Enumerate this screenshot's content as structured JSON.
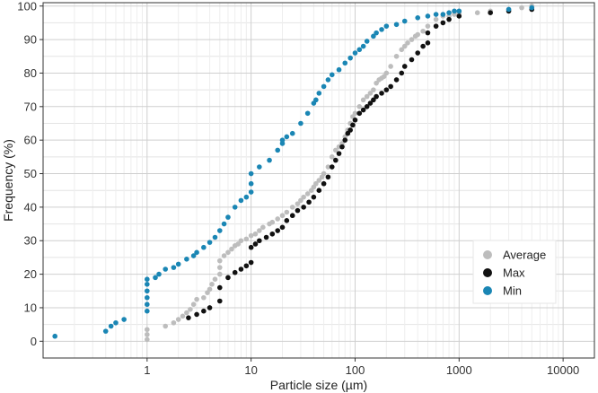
{
  "chart_data": {
    "type": "scatter",
    "title": "",
    "xlabel": "Particle size (µm)",
    "ylabel": "Frequency (%)",
    "x_scale": "log",
    "xlim": [
      0.1,
      20000
    ],
    "ylim": [
      -5,
      101
    ],
    "x_ticks": [
      1,
      10,
      100,
      1000,
      10000
    ],
    "x_tick_labels": [
      "1",
      "10",
      "100",
      "1000",
      "10000"
    ],
    "y_ticks": [
      0,
      10,
      20,
      30,
      40,
      50,
      60,
      70,
      80,
      90,
      100
    ],
    "y_tick_labels": [
      "0",
      "10",
      "20",
      "30",
      "40",
      "50",
      "60",
      "70",
      "80",
      "90",
      "100"
    ],
    "grid": true,
    "legend_position": "bottom-right",
    "colors": {
      "Average": "#bdbdbd",
      "Max": "#111111",
      "Min": "#1a86b4"
    },
    "series": [
      {
        "name": "Average",
        "x": [
          1,
          1,
          1,
          1.5,
          1.8,
          2,
          2.2,
          2.4,
          2.6,
          2.8,
          3,
          3.5,
          3.8,
          4,
          4.2,
          4.5,
          5,
          5,
          5,
          5.5,
          6,
          6.5,
          7,
          7.5,
          8,
          9,
          10,
          11,
          12,
          13,
          15,
          16,
          18,
          20,
          22,
          25,
          28,
          30,
          32,
          35,
          38,
          40,
          42,
          45,
          48,
          50,
          55,
          60,
          65,
          70,
          75,
          80,
          85,
          90,
          95,
          100,
          110,
          120,
          130,
          140,
          150,
          160,
          170,
          180,
          190,
          200,
          220,
          250,
          280,
          300,
          320,
          350,
          380,
          400,
          450,
          500,
          600,
          700,
          800,
          900,
          1000,
          1500,
          2000,
          3000,
          4000,
          5000
        ],
        "y": [
          0.5,
          2,
          3.5,
          4.5,
          5.5,
          6.5,
          7.5,
          8.5,
          9.5,
          11,
          12.5,
          13,
          14.5,
          15.5,
          17,
          18.5,
          20,
          22,
          24,
          25.5,
          26.5,
          27.5,
          28.5,
          29,
          30,
          30.5,
          31.5,
          32,
          33,
          34,
          35,
          35.5,
          36.5,
          37.5,
          38.5,
          40,
          41,
          42,
          43,
          44,
          45,
          46,
          47,
          48,
          49,
          50,
          52,
          55,
          57,
          58,
          59,
          61,
          63,
          65,
          67,
          68,
          70,
          72,
          73,
          74,
          75,
          77,
          78,
          78.5,
          79,
          80,
          82,
          85,
          87,
          88,
          89,
          90,
          91,
          91.5,
          92.5,
          94,
          96,
          97,
          97,
          97.5,
          98,
          98,
          98.5,
          99,
          99.5,
          100
        ]
      },
      {
        "name": "Max",
        "x": [
          2.5,
          3,
          3.5,
          4,
          5,
          5,
          6,
          7,
          8,
          9,
          10,
          10,
          11,
          12,
          14,
          16,
          18,
          20,
          22,
          25,
          28,
          32,
          36,
          40,
          45,
          50,
          55,
          60,
          65,
          70,
          75,
          80,
          85,
          90,
          95,
          100,
          110,
          120,
          130,
          140,
          150,
          160,
          180,
          200,
          220,
          250,
          280,
          300,
          350,
          400,
          450,
          500,
          500,
          600,
          700,
          800,
          1000,
          2000,
          3000,
          5000
        ],
        "y": [
          7,
          8,
          9,
          10,
          12,
          16,
          19,
          20.5,
          21.5,
          22.5,
          23.5,
          28,
          29,
          30,
          31,
          32,
          33,
          34,
          36,
          37.5,
          39,
          40,
          41.5,
          43,
          45,
          47,
          49,
          52,
          54,
          56,
          58,
          60,
          62,
          63,
          64.5,
          66,
          68,
          69,
          70,
          71,
          72,
          73,
          74,
          75,
          76,
          78,
          80,
          82,
          84,
          86,
          88,
          89,
          92,
          94,
          95,
          96,
          97,
          98,
          98.5,
          99
        ]
      },
      {
        "name": "Min",
        "x": [
          0.13,
          0.4,
          0.45,
          0.5,
          0.6,
          1,
          1,
          1,
          1,
          1,
          1,
          1.2,
          1.3,
          1.5,
          1.8,
          2,
          2.4,
          2.8,
          3,
          3.5,
          4,
          4.5,
          5,
          5.5,
          6,
          7,
          8,
          9,
          10,
          10,
          10,
          12,
          15,
          18,
          20,
          20,
          22,
          25,
          30,
          35,
          40,
          42,
          45,
          50,
          55,
          60,
          70,
          80,
          90,
          100,
          110,
          120,
          130,
          150,
          160,
          180,
          200,
          250,
          300,
          400,
          500,
          600,
          700,
          800,
          900,
          1000,
          3000,
          5000
        ],
        "y": [
          1.5,
          3,
          4.5,
          5.5,
          6.5,
          9,
          11,
          13,
          15,
          17,
          18.5,
          19,
          20,
          21.5,
          22,
          23,
          24.5,
          25.5,
          26.5,
          28,
          29.5,
          31,
          33,
          35,
          37,
          40,
          42,
          43,
          44.5,
          47,
          50,
          52,
          54,
          57,
          59,
          60,
          61,
          62,
          65,
          68,
          71,
          72,
          74,
          76,
          78,
          79.5,
          81,
          83,
          84.5,
          86,
          87,
          88,
          89.5,
          91,
          92,
          93,
          94,
          94.5,
          95.5,
          96.5,
          97,
          97.5,
          97.5,
          98,
          98.5,
          98.5,
          99,
          99.5
        ]
      }
    ]
  }
}
